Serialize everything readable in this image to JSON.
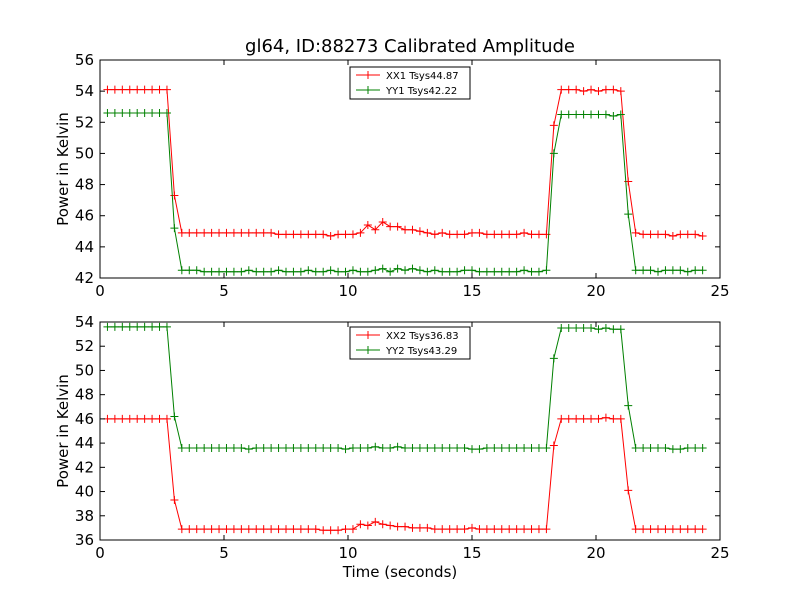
{
  "figure": {
    "title": "gl64, ID:88273 Calibrated Amplitude"
  },
  "chart_data": [
    {
      "type": "line",
      "title": "gl64, ID:88273 Calibrated Amplitude",
      "xlabel": "",
      "ylabel": "Power in Kelvin",
      "xlim": [
        0,
        25
      ],
      "ylim": [
        42,
        56
      ],
      "xticks": [
        0,
        5,
        10,
        15,
        20,
        25
      ],
      "yticks": [
        42,
        44,
        46,
        48,
        50,
        52,
        54,
        56
      ],
      "grid": false,
      "legend_position": "top-center",
      "x": [
        0.3,
        0.6,
        0.9,
        1.2,
        1.5,
        1.8,
        2.1,
        2.4,
        2.7,
        3.0,
        3.3,
        3.6,
        3.9,
        4.2,
        4.5,
        4.8,
        5.1,
        5.4,
        5.7,
        6.0,
        6.3,
        6.6,
        6.9,
        7.2,
        7.5,
        7.8,
        8.1,
        8.4,
        8.7,
        9.0,
        9.3,
        9.6,
        9.9,
        10.2,
        10.5,
        10.8,
        11.1,
        11.4,
        11.7,
        12.0,
        12.3,
        12.6,
        12.9,
        13.2,
        13.5,
        13.8,
        14.1,
        14.4,
        14.7,
        15.0,
        15.3,
        15.6,
        15.9,
        16.2,
        16.5,
        16.8,
        17.1,
        17.4,
        17.7,
        18.0,
        18.3,
        18.6,
        18.9,
        19.2,
        19.5,
        19.8,
        20.1,
        20.4,
        20.7,
        21.0,
        21.3,
        21.6,
        21.9,
        22.2,
        22.5,
        22.8,
        23.1,
        23.4,
        23.7,
        24.0,
        24.3
      ],
      "series": [
        {
          "name": "XX1 Tsys44.87",
          "color": "#ff0000",
          "values": [
            54.1,
            54.1,
            54.1,
            54.1,
            54.1,
            54.1,
            54.1,
            54.1,
            54.1,
            47.3,
            44.9,
            44.9,
            44.9,
            44.9,
            44.9,
            44.9,
            44.9,
            44.9,
            44.9,
            44.9,
            44.9,
            44.9,
            44.9,
            44.8,
            44.8,
            44.8,
            44.8,
            44.8,
            44.8,
            44.8,
            44.7,
            44.8,
            44.8,
            44.8,
            44.9,
            45.4,
            45.1,
            45.6,
            45.3,
            45.3,
            45.1,
            45.1,
            45.0,
            44.9,
            44.8,
            44.9,
            44.8,
            44.8,
            44.8,
            44.9,
            44.9,
            44.8,
            44.8,
            44.8,
            44.8,
            44.8,
            44.9,
            44.8,
            44.8,
            44.8,
            51.8,
            54.1,
            54.1,
            54.1,
            54.0,
            54.1,
            54.0,
            54.1,
            54.1,
            54.0,
            48.2,
            44.9,
            44.8,
            44.8,
            44.8,
            44.8,
            44.7,
            44.8,
            44.8,
            44.8,
            44.7
          ]
        },
        {
          "name": "YY1 Tsys42.22",
          "color": "#008000",
          "values": [
            52.6,
            52.6,
            52.6,
            52.6,
            52.6,
            52.6,
            52.6,
            52.6,
            52.6,
            45.2,
            42.5,
            42.5,
            42.5,
            42.4,
            42.4,
            42.4,
            42.4,
            42.4,
            42.4,
            42.5,
            42.4,
            42.4,
            42.4,
            42.5,
            42.4,
            42.4,
            42.4,
            42.5,
            42.4,
            42.4,
            42.5,
            42.4,
            42.4,
            42.5,
            42.4,
            42.4,
            42.5,
            42.6,
            42.4,
            42.6,
            42.5,
            42.6,
            42.5,
            42.4,
            42.5,
            42.4,
            42.4,
            42.4,
            42.5,
            42.5,
            42.4,
            42.4,
            42.4,
            42.4,
            42.4,
            42.4,
            42.5,
            42.4,
            42.4,
            42.5,
            50.0,
            52.5,
            52.5,
            52.5,
            52.5,
            52.5,
            52.5,
            52.5,
            52.4,
            52.5,
            46.1,
            42.5,
            42.5,
            42.5,
            42.4,
            42.5,
            42.5,
            42.5,
            42.4,
            42.5,
            42.5
          ]
        }
      ]
    },
    {
      "type": "line",
      "title": "",
      "xlabel": "Time (seconds)",
      "ylabel": "Power in Kelvin",
      "xlim": [
        0,
        25
      ],
      "ylim": [
        36,
        54
      ],
      "xticks": [
        0,
        5,
        10,
        15,
        20,
        25
      ],
      "yticks": [
        36,
        38,
        40,
        42,
        44,
        46,
        48,
        50,
        52,
        54
      ],
      "grid": false,
      "legend_position": "top-center",
      "x": [
        0.3,
        0.6,
        0.9,
        1.2,
        1.5,
        1.8,
        2.1,
        2.4,
        2.7,
        3.0,
        3.3,
        3.6,
        3.9,
        4.2,
        4.5,
        4.8,
        5.1,
        5.4,
        5.7,
        6.0,
        6.3,
        6.6,
        6.9,
        7.2,
        7.5,
        7.8,
        8.1,
        8.4,
        8.7,
        9.0,
        9.3,
        9.6,
        9.9,
        10.2,
        10.5,
        10.8,
        11.1,
        11.4,
        11.7,
        12.0,
        12.3,
        12.6,
        12.9,
        13.2,
        13.5,
        13.8,
        14.1,
        14.4,
        14.7,
        15.0,
        15.3,
        15.6,
        15.9,
        16.2,
        16.5,
        16.8,
        17.1,
        17.4,
        17.7,
        18.0,
        18.3,
        18.6,
        18.9,
        19.2,
        19.5,
        19.8,
        20.1,
        20.4,
        20.7,
        21.0,
        21.3,
        21.6,
        21.9,
        22.2,
        22.5,
        22.8,
        23.1,
        23.4,
        23.7,
        24.0,
        24.3
      ],
      "series": [
        {
          "name": "XX2 Tsys36.83",
          "color": "#ff0000",
          "values": [
            46.0,
            46.0,
            46.0,
            46.0,
            46.0,
            46.0,
            46.0,
            46.0,
            46.0,
            39.3,
            36.9,
            36.9,
            36.9,
            36.9,
            36.9,
            36.9,
            36.9,
            36.9,
            36.9,
            36.9,
            36.9,
            36.9,
            36.9,
            36.9,
            36.9,
            36.9,
            36.9,
            36.9,
            36.9,
            36.8,
            36.8,
            36.8,
            36.9,
            36.9,
            37.3,
            37.2,
            37.5,
            37.3,
            37.2,
            37.1,
            37.1,
            37.0,
            37.0,
            37.0,
            36.9,
            36.9,
            36.9,
            36.9,
            36.9,
            37.0,
            36.9,
            36.9,
            36.9,
            36.9,
            36.9,
            36.9,
            36.9,
            36.9,
            36.9,
            36.9,
            43.8,
            46.0,
            46.0,
            46.0,
            46.0,
            46.0,
            46.0,
            46.1,
            46.0,
            46.0,
            40.1,
            36.9,
            36.9,
            36.9,
            36.9,
            36.9,
            36.9,
            36.9,
            36.9,
            36.9,
            36.9
          ]
        },
        {
          "name": "YY2 Tsys43.29",
          "color": "#008000",
          "values": [
            53.6,
            53.6,
            53.6,
            53.6,
            53.6,
            53.6,
            53.6,
            53.6,
            53.6,
            46.2,
            43.6,
            43.6,
            43.6,
            43.6,
            43.6,
            43.6,
            43.6,
            43.6,
            43.6,
            43.5,
            43.6,
            43.6,
            43.6,
            43.6,
            43.6,
            43.6,
            43.6,
            43.6,
            43.6,
            43.6,
            43.6,
            43.6,
            43.5,
            43.6,
            43.6,
            43.6,
            43.7,
            43.6,
            43.6,
            43.7,
            43.6,
            43.6,
            43.6,
            43.6,
            43.6,
            43.6,
            43.6,
            43.6,
            43.6,
            43.5,
            43.5,
            43.6,
            43.6,
            43.6,
            43.6,
            43.6,
            43.6,
            43.6,
            43.6,
            43.6,
            51.0,
            53.5,
            53.5,
            53.5,
            53.5,
            53.5,
            53.4,
            53.5,
            53.4,
            53.4,
            47.1,
            43.6,
            43.6,
            43.6,
            43.6,
            43.6,
            43.5,
            43.5,
            43.6,
            43.6,
            43.6
          ]
        }
      ]
    }
  ]
}
